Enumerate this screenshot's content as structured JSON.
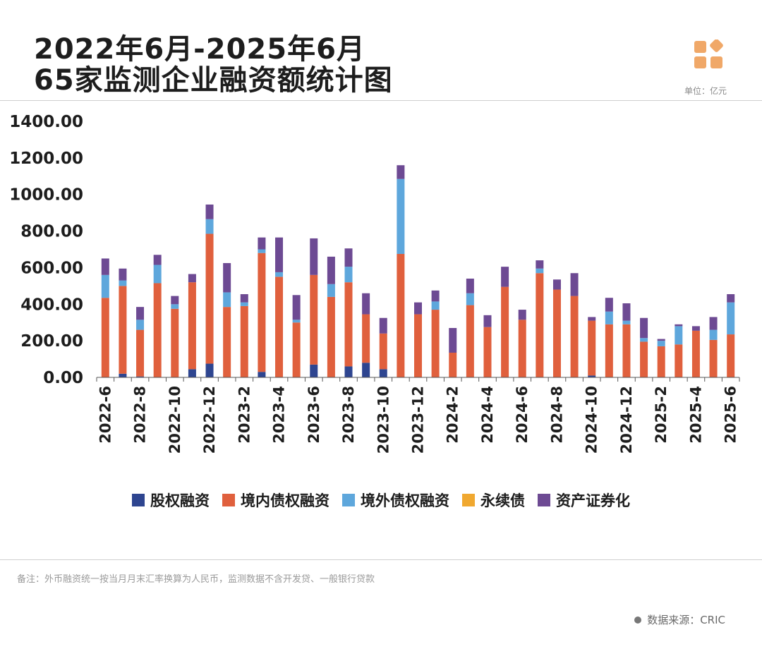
{
  "header": {
    "title_line1": "2022年6月-2025年6月",
    "title_line2": "65家监测企业融资额统计图",
    "unit": "单位：亿元"
  },
  "footer": {
    "note": "备注：外币融资统一按当月月末汇率换算为人民币，监测数据不含开发贷、一般银行贷款",
    "source": "数据来源：CRIC"
  },
  "colors": {
    "equity": "#2e4590",
    "domestic_debt": "#e0603d",
    "overseas_debt": "#5ea7dc",
    "perpetual_bond": "#f0a830",
    "abs": "#6d4a93",
    "logo": "#f0a868"
  },
  "chart_data": {
    "type": "bar",
    "stacked": true,
    "title": "65家监测企业融资额统计图",
    "ylabel": "亿元",
    "ylim": [
      0,
      1400
    ],
    "yticks": [
      "0.00",
      "200.00",
      "400.00",
      "600.00",
      "800.00",
      "1000.00",
      "1200.00",
      "1400.00"
    ],
    "categories": [
      "2022-6",
      "2022-7",
      "2022-8",
      "2022-9",
      "2022-10",
      "2022-11",
      "2022-12",
      "2023-1",
      "2023-2",
      "2023-3",
      "2023-4",
      "2023-5",
      "2023-6",
      "2023-7",
      "2023-8",
      "2023-9",
      "2023-10",
      "2023-11",
      "2023-12",
      "2024-1",
      "2024-2",
      "2024-3",
      "2024-4",
      "2024-5",
      "2024-6",
      "2024-7",
      "2024-8",
      "2024-9",
      "2024-10",
      "2024-11",
      "2024-12",
      "2025-1",
      "2025-2",
      "2025-3",
      "2025-4",
      "2025-5",
      "2025-6"
    ],
    "tick_labels": [
      "2022-6",
      "2022-8",
      "2022-10",
      "2022-12",
      "2023-2",
      "2023-4",
      "2023-6",
      "2023-8",
      "2023-10",
      "2023-12",
      "2024-2",
      "2024-4",
      "2024-6",
      "2024-8",
      "2024-10",
      "2024-12",
      "2025-2",
      "2025-4",
      "2025-6"
    ],
    "series": [
      {
        "name": "股权融资",
        "values": [
          0,
          20,
          5,
          0,
          0,
          45,
          75,
          0,
          0,
          30,
          0,
          0,
          70,
          0,
          60,
          80,
          45,
          0,
          0,
          0,
          0,
          0,
          0,
          0,
          0,
          0,
          0,
          0,
          10,
          0,
          0,
          0,
          0,
          0,
          0,
          0,
          0
        ]
      },
      {
        "name": "境内债权融资",
        "values": [
          435,
          480,
          255,
          515,
          375,
          475,
          710,
          385,
          390,
          650,
          550,
          300,
          490,
          440,
          460,
          265,
          195,
          675,
          345,
          370,
          135,
          395,
          275,
          495,
          315,
          570,
          480,
          445,
          300,
          290,
          290,
          195,
          170,
          180,
          255,
          205,
          235
        ]
      },
      {
        "name": "境外债权融资",
        "values": [
          125,
          30,
          55,
          100,
          25,
          0,
          80,
          80,
          20,
          20,
          25,
          15,
          0,
          70,
          85,
          0,
          0,
          410,
          0,
          45,
          0,
          65,
          0,
          0,
          0,
          25,
          0,
          0,
          0,
          70,
          20,
          20,
          30,
          100,
          0,
          55,
          175
        ]
      },
      {
        "name": "永续债",
        "values": [
          0,
          0,
          0,
          0,
          0,
          0,
          0,
          0,
          0,
          0,
          0,
          0,
          0,
          0,
          0,
          0,
          0,
          0,
          0,
          0,
          0,
          0,
          0,
          0,
          0,
          0,
          0,
          0,
          0,
          0,
          0,
          0,
          0,
          0,
          0,
          0,
          0
        ]
      },
      {
        "name": "资产证券化",
        "values": [
          90,
          65,
          70,
          55,
          45,
          45,
          80,
          160,
          45,
          65,
          190,
          135,
          200,
          150,
          100,
          115,
          85,
          75,
          65,
          60,
          135,
          80,
          65,
          110,
          55,
          45,
          55,
          125,
          20,
          75,
          95,
          110,
          10,
          10,
          25,
          70,
          45
        ]
      }
    ],
    "legend": [
      "股权融资",
      "境内债权融资",
      "境外债权融资",
      "永续债",
      "资产证券化"
    ]
  }
}
